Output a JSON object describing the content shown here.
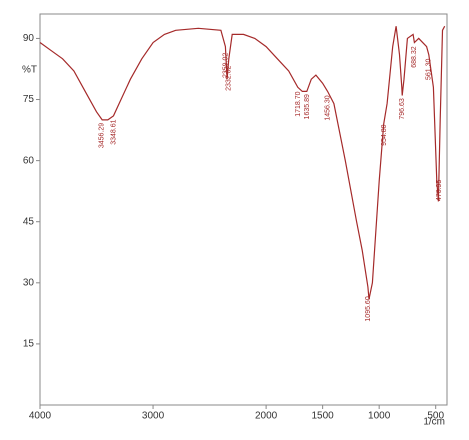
{
  "chart_data": {
    "type": "line",
    "y_label": "%T",
    "x_label": "1/cm",
    "x": [
      4000,
      3900,
      3800,
      3700,
      3600,
      3500,
      3450,
      3400,
      3350,
      3300,
      3200,
      3100,
      3000,
      2900,
      2800,
      2600,
      2400,
      2360,
      2345,
      2330,
      2300,
      2200,
      2100,
      2000,
      1900,
      1800,
      1720,
      1680,
      1640,
      1600,
      1560,
      1500,
      1456,
      1400,
      1300,
      1200,
      1150,
      1100,
      1090,
      1060,
      1000,
      960,
      930,
      880,
      850,
      820,
      800,
      796,
      780,
      750,
      700,
      688,
      650,
      580,
      561,
      520,
      490,
      476,
      460,
      440,
      420
    ],
    "y": [
      89,
      87,
      85,
      82,
      77,
      72,
      70,
      70,
      71,
      74,
      80,
      85,
      89,
      91,
      92,
      92.5,
      92,
      88,
      80,
      85,
      91,
      91,
      90,
      88,
      85,
      82,
      78,
      77,
      77,
      80,
      81,
      79,
      77,
      74,
      60,
      45,
      38,
      29,
      26,
      30,
      55,
      69,
      74,
      88,
      93,
      86,
      78,
      76,
      80,
      90,
      91,
      89,
      90,
      88,
      86,
      78,
      55,
      50,
      70,
      92,
      93
    ],
    "color": "#a52a2a",
    "xlim": [
      4000,
      400
    ],
    "xticks": [
      4000,
      3000,
      2000,
      1500,
      1000,
      500
    ],
    "ylim": [
      0,
      96
    ],
    "yticks": [
      15,
      30,
      45,
      60,
      75,
      90
    ],
    "peaks": [
      {
        "value": 3456.29,
        "label": "3456.29"
      },
      {
        "value": 3348.61,
        "label": "3348.61"
      },
      {
        "value": 2359.02,
        "label": "2359.02"
      },
      {
        "value": 2332.02,
        "label": "2332.02"
      },
      {
        "value": 1718.7,
        "label": "1718.70"
      },
      {
        "value": 1635.89,
        "label": "1635.89"
      },
      {
        "value": 1456.3,
        "label": "1456.30"
      },
      {
        "value": 1095.6,
        "label": "1095.60"
      },
      {
        "value": 954.8,
        "label": "954.80"
      },
      {
        "value": 796.63,
        "label": "796.63"
      },
      {
        "value": 688.32,
        "label": "688.32"
      },
      {
        "value": 561.3,
        "label": "561.30"
      },
      {
        "value": 470.95,
        "label": "470.95"
      }
    ]
  }
}
